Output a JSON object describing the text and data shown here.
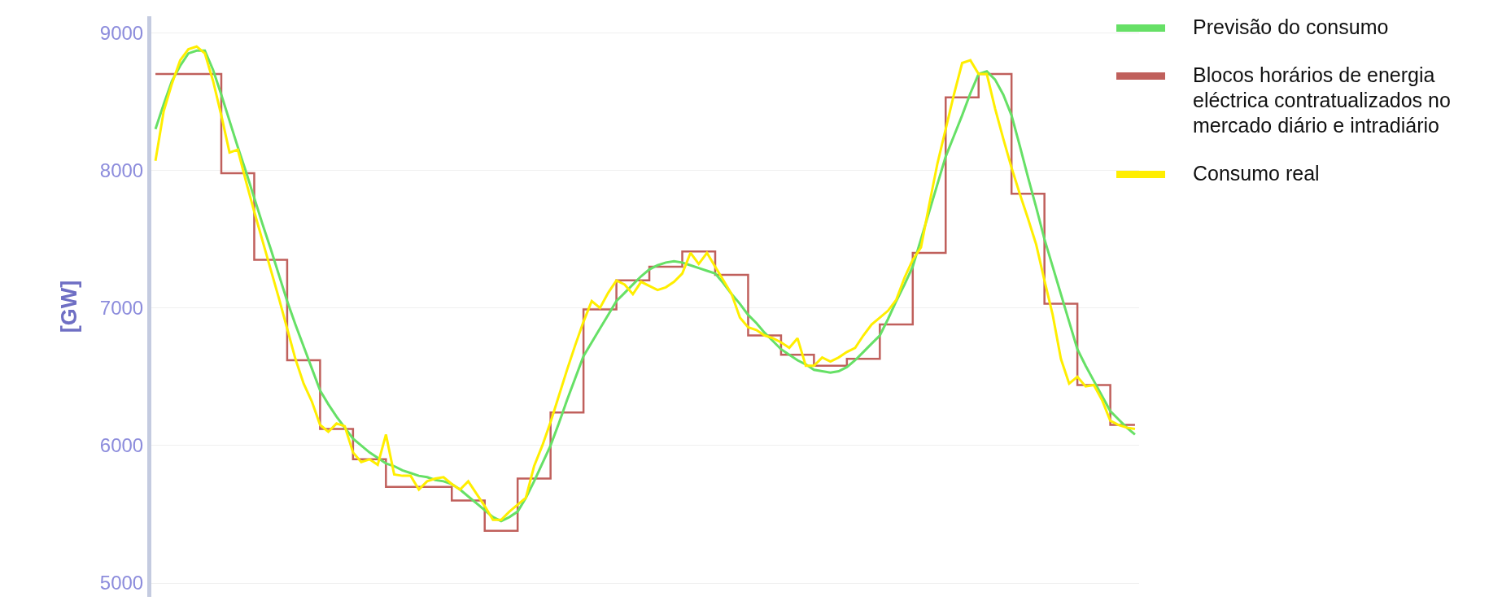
{
  "chart_data": {
    "type": "line",
    "ylabel": "[GW]",
    "categories": [
      null,
      null,
      null,
      null,
      null,
      null,
      null,
      null,
      null,
      null,
      null,
      null,
      null,
      null,
      null,
      null,
      null,
      null,
      null,
      null,
      null,
      null,
      null,
      null,
      null,
      null,
      null,
      null,
      null,
      null,
      null,
      null,
      null,
      null,
      null,
      null,
      null,
      null,
      null,
      null,
      null,
      null,
      null,
      null,
      null,
      null,
      null,
      null,
      null,
      null,
      null,
      null,
      null,
      null,
      null,
      null,
      null,
      null,
      null,
      null,
      null,
      null,
      null,
      null,
      null,
      null,
      null,
      null,
      null,
      null,
      null,
      null,
      null,
      null,
      null,
      null,
      null,
      null,
      null,
      null,
      null,
      null,
      null,
      null,
      null,
      null,
      null,
      null,
      null,
      null,
      null,
      null,
      null,
      null,
      null,
      null,
      null,
      null,
      null,
      null,
      null,
      null,
      null,
      null,
      null,
      null,
      null,
      null,
      null,
      null,
      null,
      null,
      null,
      null,
      null,
      null,
      null,
      null,
      null,
      null
    ],
    "ylim": [
      4900,
      9120
    ],
    "yticks": [
      5000,
      6000,
      7000,
      8000,
      9000
    ],
    "tick_labels": "y",
    "grid": "y",
    "legend": "top right",
    "marker": "none",
    "line_style": "solid",
    "series": [
      {
        "name": "Previsão do consumo",
        "color": "#66e066",
        "values": [
          8300,
          8480,
          8650,
          8760,
          8850,
          8870,
          8870,
          8730,
          8550,
          8360,
          8170,
          7990,
          7800,
          7610,
          7430,
          7240,
          7050,
          6880,
          6720,
          6560,
          6400,
          6300,
          6210,
          6130,
          6050,
          6000,
          5950,
          5910,
          5870,
          5850,
          5820,
          5800,
          5780,
          5770,
          5750,
          5740,
          5720,
          5680,
          5630,
          5580,
          5530,
          5480,
          5450,
          5480,
          5520,
          5620,
          5740,
          5870,
          6000,
          6160,
          6330,
          6490,
          6650,
          6750,
          6850,
          6950,
          7050,
          7110,
          7170,
          7230,
          7280,
          7310,
          7330,
          7340,
          7330,
          7310,
          7290,
          7270,
          7250,
          7180,
          7100,
          7030,
          6950,
          6890,
          6820,
          6760,
          6700,
          6660,
          6620,
          6590,
          6550,
          6540,
          6530,
          6540,
          6570,
          6620,
          6680,
          6740,
          6800,
          6920,
          7050,
          7170,
          7300,
          7500,
          7700,
          7900,
          8100,
          8250,
          8400,
          8560,
          8700,
          8720,
          8660,
          8550,
          8400,
          8180,
          7950,
          7730,
          7500,
          7300,
          7100,
          6900,
          6700,
          6580,
          6470,
          6360,
          6250,
          6190,
          6130,
          6080
        ]
      },
      {
        "name": "Blocos horários de energia eléctrica contratualizados no mercado diário e intradiário",
        "type": "step",
        "color": "#c0605c",
        "values": [
          8700,
          8700,
          8700,
          8700,
          8700,
          8700,
          8700,
          8700,
          7980,
          7980,
          7980,
          7980,
          7350,
          7350,
          7350,
          7350,
          6620,
          6620,
          6620,
          6620,
          6120,
          6120,
          6120,
          6120,
          5900,
          5900,
          5900,
          5900,
          5700,
          5700,
          5700,
          5700,
          5700,
          5700,
          5700,
          5700,
          5600,
          5600,
          5600,
          5600,
          5380,
          5380,
          5380,
          5380,
          5760,
          5760,
          5760,
          5760,
          6240,
          6240,
          6240,
          6240,
          6990,
          6990,
          6990,
          6990,
          7200,
          7200,
          7200,
          7200,
          7300,
          7300,
          7300,
          7300,
          7410,
          7410,
          7410,
          7410,
          7240,
          7240,
          7240,
          7240,
          6800,
          6800,
          6800,
          6800,
          6660,
          6660,
          6660,
          6660,
          6580,
          6580,
          6580,
          6580,
          6630,
          6630,
          6630,
          6630,
          6880,
          6880,
          6880,
          6880,
          7400,
          7400,
          7400,
          7400,
          8530,
          8530,
          8530,
          8530,
          8700,
          8700,
          8700,
          8700,
          7830,
          7830,
          7830,
          7830,
          7030,
          7030,
          7030,
          7030,
          6440,
          6440,
          6440,
          6440,
          6150,
          6150,
          6150,
          6150
        ]
      },
      {
        "name": "Consumo real",
        "color": "#ffee00",
        "values": [
          8070,
          8430,
          8630,
          8800,
          8880,
          8900,
          8850,
          8650,
          8400,
          8130,
          8150,
          7920,
          7700,
          7490,
          7280,
          7070,
          6850,
          6630,
          6450,
          6320,
          6150,
          6100,
          6160,
          6140,
          5950,
          5880,
          5900,
          5860,
          6080,
          5790,
          5780,
          5780,
          5680,
          5740,
          5760,
          5770,
          5720,
          5680,
          5740,
          5650,
          5560,
          5460,
          5460,
          5520,
          5570,
          5620,
          5850,
          6000,
          6170,
          6360,
          6550,
          6730,
          6900,
          7050,
          7000,
          7110,
          7200,
          7170,
          7100,
          7190,
          7160,
          7130,
          7150,
          7190,
          7250,
          7400,
          7320,
          7400,
          7300,
          7200,
          7100,
          6930,
          6860,
          6840,
          6800,
          6780,
          6750,
          6710,
          6780,
          6580,
          6580,
          6640,
          6610,
          6640,
          6680,
          6710,
          6800,
          6880,
          6930,
          6980,
          7060,
          7220,
          7350,
          7440,
          7750,
          8050,
          8300,
          8550,
          8780,
          8800,
          8700,
          8700,
          8450,
          8230,
          8020,
          7830,
          7650,
          7460,
          7200,
          6950,
          6630,
          6450,
          6500,
          6430,
          6440,
          6330,
          6180,
          6150,
          6130,
          6120
        ]
      }
    ]
  }
}
